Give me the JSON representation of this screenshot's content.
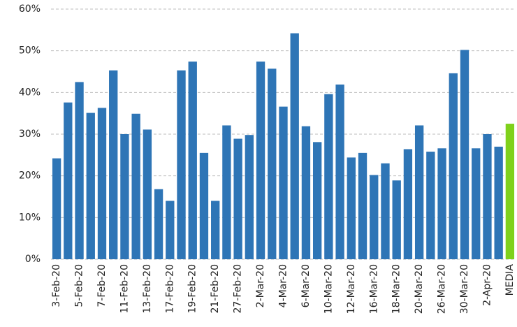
{
  "chart_data": {
    "type": "bar",
    "categories": [
      "3-Feb-20",
      null,
      "5-Feb-20",
      null,
      "7-Feb-20",
      null,
      "11-Feb-20",
      null,
      "13-Feb-20",
      null,
      "17-Feb-20",
      null,
      "19-Feb-20",
      null,
      "21-Feb-20",
      null,
      "27-Feb-20",
      null,
      "2-Mar-20",
      null,
      "4-Mar-20",
      null,
      "6-Mar-20",
      null,
      "10-Mar-20",
      null,
      "12-Mar-20",
      null,
      "16-Mar-20",
      null,
      "18-Mar-20",
      null,
      "20-Mar-20",
      null,
      "26-Mar-20",
      null,
      "30-Mar-20",
      null,
      "2-Apr-20",
      null,
      "MEDIA"
    ],
    "values": [
      24.2,
      37.6,
      42.5,
      35.1,
      36.3,
      45.3,
      30.0,
      34.9,
      31.1,
      16.8,
      14.0,
      45.3,
      47.4,
      25.5,
      14.0,
      32.1,
      28.9,
      29.8,
      47.4,
      45.7,
      36.6,
      54.2,
      31.9,
      28.1,
      39.6,
      41.9,
      24.4,
      25.5,
      20.2,
      23.0,
      18.9,
      26.4,
      32.1,
      25.8,
      26.6,
      44.6,
      50.2,
      26.6,
      30.0,
      27.0,
      32.5
    ],
    "colors": [
      "#2e75b6",
      "#2e75b6",
      "#2e75b6",
      "#2e75b6",
      "#2e75b6",
      "#2e75b6",
      "#2e75b6",
      "#2e75b6",
      "#2e75b6",
      "#2e75b6",
      "#2e75b6",
      "#2e75b6",
      "#2e75b6",
      "#2e75b6",
      "#2e75b6",
      "#2e75b6",
      "#2e75b6",
      "#2e75b6",
      "#2e75b6",
      "#2e75b6",
      "#2e75b6",
      "#2e75b6",
      "#2e75b6",
      "#2e75b6",
      "#2e75b6",
      "#2e75b6",
      "#2e75b6",
      "#2e75b6",
      "#2e75b6",
      "#2e75b6",
      "#2e75b6",
      "#2e75b6",
      "#2e75b6",
      "#2e75b6",
      "#2e75b6",
      "#2e75b6",
      "#2e75b6",
      "#2e75b6",
      "#2e75b6",
      "#2e75b6",
      "#7fd11b"
    ],
    "ylim": [
      0,
      60
    ],
    "yticks": [
      {
        "value": 0,
        "label": "0%"
      },
      {
        "value": 10,
        "label": "10%"
      },
      {
        "value": 20,
        "label": "20%"
      },
      {
        "value": 30,
        "label": "30%"
      },
      {
        "value": 40,
        "label": "40%"
      },
      {
        "value": 50,
        "label": "50%"
      },
      {
        "value": 60,
        "label": "60%"
      }
    ],
    "grid": true
  }
}
